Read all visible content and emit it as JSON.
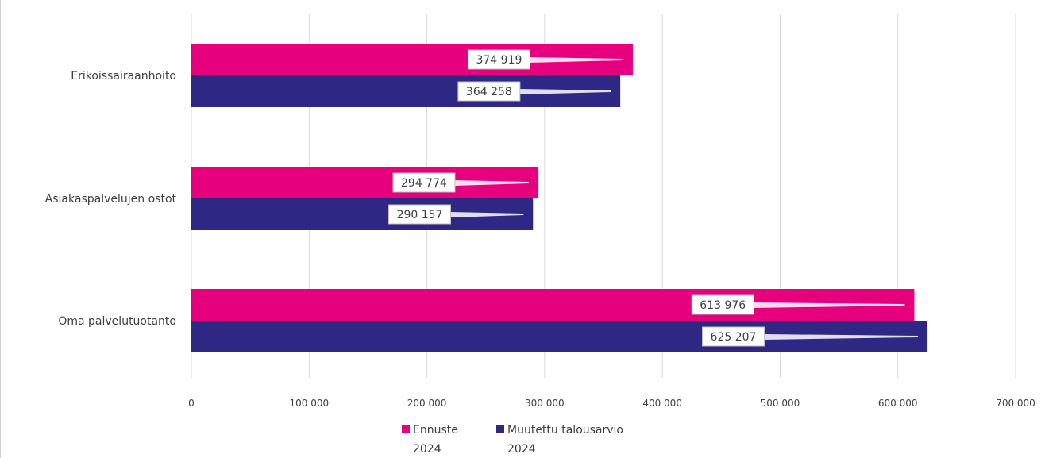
{
  "chart_data": {
    "type": "bar",
    "orientation": "horizontal",
    "title": "",
    "categories": [
      "Erikoissairaanhoito",
      "Asiakaspalvelujen ostot",
      "Oma palvelutuotanto"
    ],
    "series": [
      {
        "name": "Ennuste 2024",
        "name_lines": [
          "Ennuste",
          "2024"
        ],
        "color": "#e6007e",
        "values": [
          374919,
          294774,
          613976
        ],
        "labels": [
          "374 919",
          "294 774",
          "613 976"
        ]
      },
      {
        "name": "Muutettu talousarvio 2024",
        "name_lines": [
          "Muutettu talousarvio",
          "2024"
        ],
        "color": "#2e2783",
        "values": [
          364258,
          290157,
          625207
        ],
        "labels": [
          "364 258",
          "290 157",
          "625 207"
        ]
      }
    ],
    "xlim": [
      0,
      700000
    ],
    "x_ticks": [
      0,
      100000,
      200000,
      300000,
      400000,
      500000,
      600000,
      700000
    ],
    "x_tick_labels": [
      "0",
      "100 000",
      "200 000",
      "300 000",
      "400 000",
      "500 000",
      "600 000",
      "700 000"
    ],
    "grid": true,
    "legend_position": "bottom"
  }
}
